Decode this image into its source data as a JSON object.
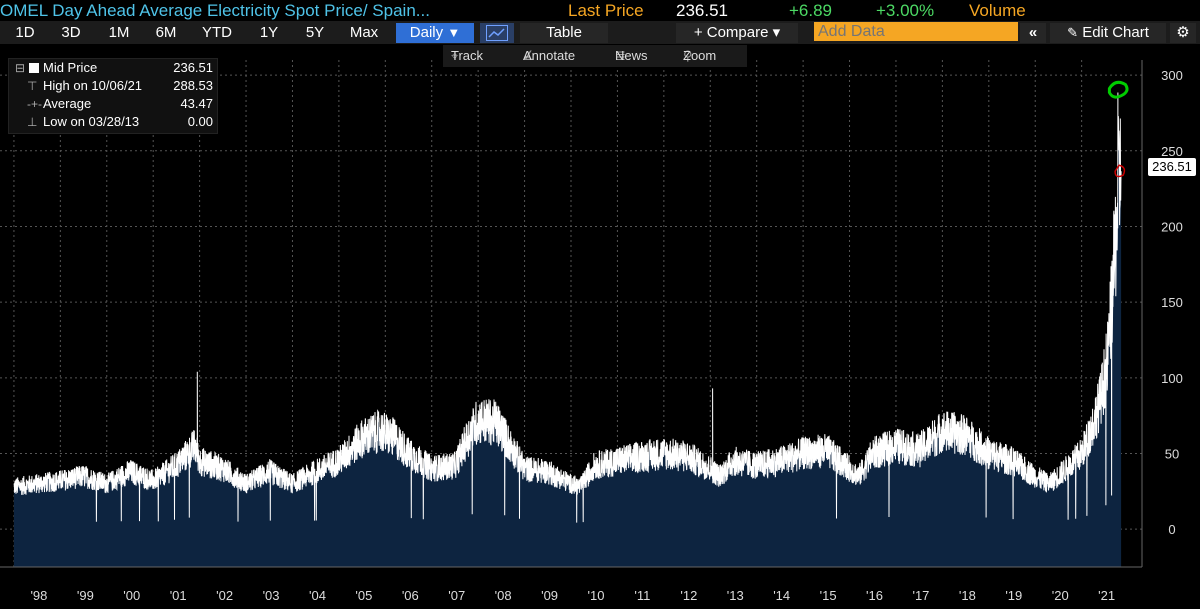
{
  "header": {
    "title": "OMEL Day Ahead Average Electricity Spot Price/ Spain...",
    "last_price_label": "Last Price",
    "last_price": "236.51",
    "change": "+6.89",
    "change_pct": "+3.00%",
    "volume_label": "Volume",
    "colors": {
      "title": "#4fc3e8",
      "label": "#f5a623",
      "value": "#ffffff",
      "change": "#4cd964"
    }
  },
  "toolbar": {
    "ranges": [
      "1D",
      "3D",
      "1M",
      "6M",
      "YTD",
      "1Y",
      "5Y",
      "Max"
    ],
    "frequency": "Daily",
    "frequency_arrow": "▼",
    "chart_icon": "line-chart-icon",
    "table_label": "Table",
    "compare_label": "+ Compare ▾",
    "add_data_placeholder": "Add Data",
    "collapse_label": "«",
    "edit_chart_label": "Edit Chart",
    "settings_icon": "gear-icon"
  },
  "tools": {
    "track": "Track",
    "annotate": "Annotate",
    "news": "News",
    "zoom": "Zoom"
  },
  "legend": {
    "rows": [
      {
        "label": "Mid Price",
        "value": "236.51",
        "icon": "square-icon"
      },
      {
        "label": "High on 10/06/21",
        "value": "288.53",
        "icon": "high-marker-icon"
      },
      {
        "label": "Average",
        "value": "43.47",
        "icon": "average-marker-icon"
      },
      {
        "label": "Low on 03/28/13",
        "value": "0.00",
        "icon": "low-marker-icon"
      }
    ]
  },
  "last_price_tag": "236.51",
  "chart_data": {
    "type": "area",
    "title": "OMEL Day Ahead Average Electricity Spot Price/ Spain...",
    "series": [
      {
        "name": "Mid Price",
        "color": "#ffffff",
        "fill": "#0d2440",
        "x": [
          1998.0,
          1998.5,
          1999.0,
          1999.5,
          2000.0,
          2000.5,
          2001.0,
          2001.5,
          2001.9,
          2002.0,
          2002.5,
          2003.0,
          2003.5,
          2004.0,
          2004.5,
          2005.0,
          2005.5,
          2005.9,
          2006.2,
          2006.5,
          2007.0,
          2007.5,
          2007.8,
          2008.0,
          2008.4,
          2008.8,
          2009.0,
          2009.5,
          2010.0,
          2010.2,
          2010.5,
          2011.0,
          2011.5,
          2012.0,
          2012.5,
          2013.0,
          2013.2,
          2013.5,
          2014.0,
          2014.5,
          2015.0,
          2015.5,
          2016.0,
          2016.2,
          2016.5,
          2017.0,
          2017.5,
          2018.0,
          2018.5,
          2019.0,
          2019.5,
          2020.0,
          2020.3,
          2020.6,
          2021.0,
          2021.2,
          2021.4,
          2021.55,
          2021.65,
          2021.75,
          2021.8,
          2021.85
        ],
        "y": [
          28,
          30,
          32,
          35,
          30,
          38,
          32,
          42,
          55,
          45,
          40,
          30,
          38,
          30,
          38,
          45,
          60,
          65,
          60,
          50,
          40,
          42,
          62,
          72,
          70,
          50,
          40,
          38,
          30,
          28,
          42,
          45,
          48,
          50,
          48,
          40,
          35,
          45,
          42,
          45,
          50,
          52,
          40,
          35,
          50,
          55,
          52,
          65,
          62,
          50,
          45,
          35,
          30,
          38,
          50,
          65,
          85,
          110,
          150,
          200,
          230,
          236.51
        ]
      }
    ],
    "xlabel": "",
    "ylabel": "",
    "xlim": [
      1997.7,
      2022.3
    ],
    "ylim": [
      -25,
      310
    ],
    "x_tick_labels": [
      "'98",
      "'99",
      "'00",
      "'01",
      "'02",
      "'03",
      "'04",
      "'05",
      "'06",
      "'07",
      "'08",
      "'09",
      "'10",
      "'11",
      "'12",
      "'13",
      "'14",
      "'15",
      "'16",
      "'17",
      "'18",
      "'19",
      "'20",
      "'21"
    ],
    "x_tick_values": [
      1998,
      1999,
      2000,
      2001,
      2002,
      2003,
      2004,
      2005,
      2006,
      2007,
      2008,
      2009,
      2010,
      2011,
      2012,
      2013,
      2014,
      2015,
      2016,
      2017,
      2018,
      2019,
      2020,
      2021
    ],
    "y_ticks": [
      0,
      50,
      100,
      150,
      200,
      250,
      300
    ],
    "grid": true,
    "y_axis_position": "right",
    "annotations": [
      {
        "label": "high-marker",
        "x": 2021.77,
        "y": 288.53,
        "color": "#00cc00"
      },
      {
        "label": "last-marker",
        "x": 2021.85,
        "y": 236.51,
        "color": "#cc0000"
      }
    ]
  }
}
